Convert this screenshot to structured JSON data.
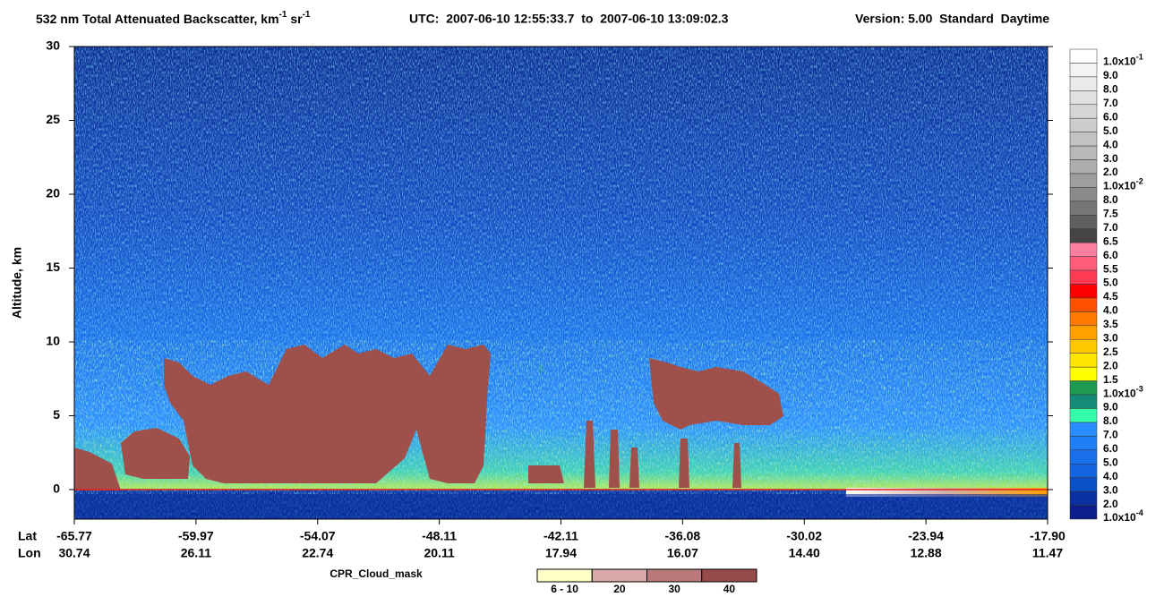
{
  "chart_data": {
    "type": "curtain",
    "title": [
      "532 nm Total Attenuated Backscatter, km",
      "-1",
      " sr",
      "-1"
    ],
    "time_range": "UTC:  2007-06-10 12:55:33.7  to  2007-06-10 13:09:02.3",
    "version": "Version: 5.00  Standard  Daytime",
    "ylabel": "Altitude, km",
    "ylim": [
      -2,
      30
    ],
    "yticks": [
      0,
      5,
      10,
      15,
      20,
      25,
      30
    ],
    "surface_line_color": "#e02020",
    "x_rows": [
      {
        "name": "Lat",
        "labels": [
          "-65.77",
          "-59.97",
          "-54.07",
          "-48.11",
          "-42.11",
          "-36.08",
          "-30.02",
          "-23.94",
          "-17.90"
        ]
      },
      {
        "name": "Lon",
        "labels": [
          "30.74",
          "26.11",
          "22.74",
          "20.11",
          "17.94",
          "16.07",
          "14.40",
          "12.88",
          "11.47"
        ]
      }
    ],
    "colorbar": [
      {
        "label": "1.0x10",
        "sup": "-1",
        "color": "#ffffff"
      },
      {
        "label": "9.0",
        "color": "#f4f4f4"
      },
      {
        "label": "8.0",
        "color": "#eaeaea"
      },
      {
        "label": "7.0",
        "color": "#e0e0e0"
      },
      {
        "label": "6.0",
        "color": "#d6d6d6"
      },
      {
        "label": "5.0",
        "color": "#cccccc"
      },
      {
        "label": "4.0",
        "color": "#c2c2c2"
      },
      {
        "label": "3.0",
        "color": "#b8b8b8"
      },
      {
        "label": "2.0",
        "color": "#aeaeae"
      },
      {
        "label": "1.0x10",
        "sup": "-2",
        "color": "#9e9e9e"
      },
      {
        "label": "8.0",
        "color": "#8a8a8a"
      },
      {
        "label": "7.5",
        "color": "#767676"
      },
      {
        "label": "7.0",
        "color": "#606060"
      },
      {
        "label": "6.5",
        "color": "#444444"
      },
      {
        "label": "6.0",
        "color": "#ff7fa0"
      },
      {
        "label": "5.5",
        "color": "#ff5c7c"
      },
      {
        "label": "5.0",
        "color": "#ff3a55"
      },
      {
        "label": "4.5",
        "color": "#ff0000"
      },
      {
        "label": "4.0",
        "color": "#ff5000"
      },
      {
        "label": "3.5",
        "color": "#ff7800"
      },
      {
        "label": "3.0",
        "color": "#ffa000"
      },
      {
        "label": "2.5",
        "color": "#ffc800"
      },
      {
        "label": "2.0",
        "color": "#ffe600"
      },
      {
        "label": "1.5",
        "color": "#ffff00"
      },
      {
        "label": "1.0x10",
        "sup": "-3",
        "color": "#1e9a50"
      },
      {
        "label": "9.0",
        "color": "#148a78"
      },
      {
        "label": "8.0",
        "color": "#33ffaa"
      },
      {
        "label": "7.0",
        "color": "#2a8cff"
      },
      {
        "label": "6.0",
        "color": "#1f7ff5"
      },
      {
        "label": "5.0",
        "color": "#1a70ea"
      },
      {
        "label": "4.0",
        "color": "#1464e0"
      },
      {
        "label": "3.0",
        "color": "#0a50c8"
      },
      {
        "label": "2.0",
        "color": "#0a2fa0"
      },
      {
        "label": "1.0x10",
        "sup": "-4",
        "color": "#0a1e8c"
      }
    ],
    "cloud_mask": {
      "name": "CPR_Cloud_mask",
      "bins": [
        {
          "label": "6 - 10",
          "color": "#ffffc8"
        },
        {
          "label": "20",
          "color": "#d6a8a8"
        },
        {
          "label": "30",
          "color": "#b87a7a"
        },
        {
          "label": "40",
          "color": "#964a4a"
        }
      ]
    }
  }
}
